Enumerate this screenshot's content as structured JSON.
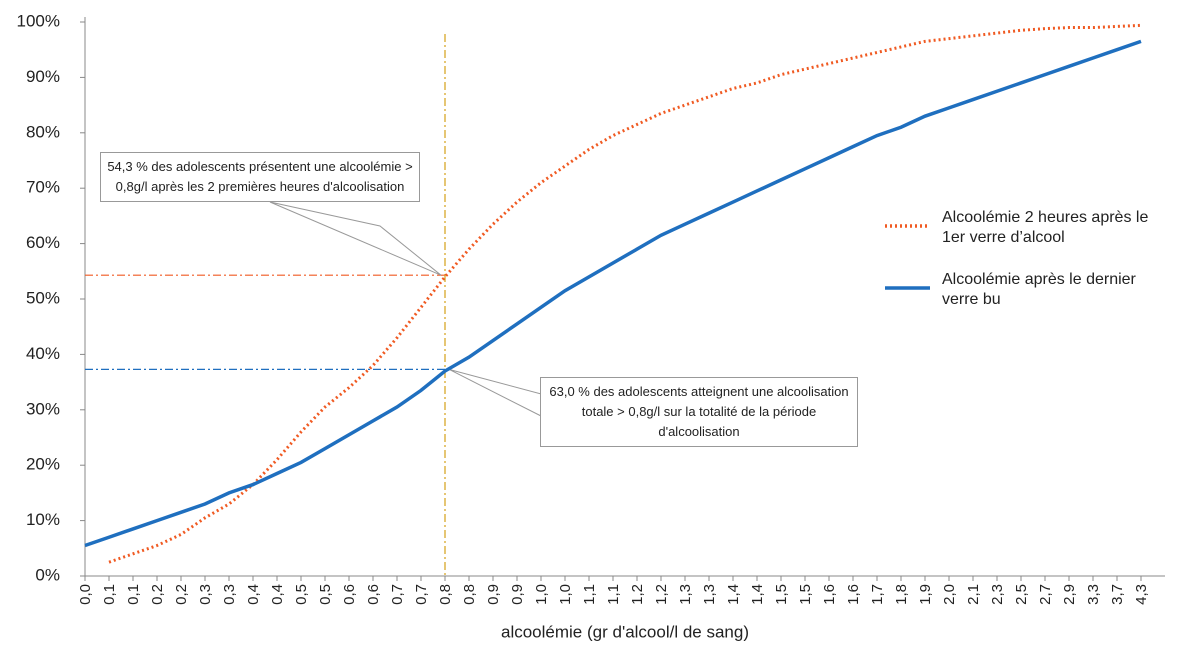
{
  "chart_data": {
    "type": "line",
    "x_label": "alcoolémie (gr d'alcool/l de sang)",
    "categories": [
      "0,0",
      "0,1",
      "0,1",
      "0,2",
      "0,2",
      "0,3",
      "0,3",
      "0,4",
      "0,4",
      "0,5",
      "0,5",
      "0,6",
      "0,6",
      "0,7",
      "0,7",
      "0,8",
      "0,8",
      "0,9",
      "0,9",
      "1,0",
      "1,0",
      "1,1",
      "1,1",
      "1,2",
      "1,2",
      "1,3",
      "1,3",
      "1,4",
      "1,4",
      "1,5",
      "1,5",
      "1,6",
      "1,6",
      "1,7",
      "1,8",
      "1,9",
      "2,0",
      "2,1",
      "2,3",
      "2,5",
      "2,7",
      "2,9",
      "3,3",
      "3,7",
      "4,3"
    ],
    "series": [
      {
        "name": "Alcoolémie 2 heures après le 1er verre d’alcool",
        "color": "#f05a22",
        "dash": "dotted",
        "values": [
          null,
          2.5,
          4,
          5.5,
          7.5,
          10.5,
          13,
          16.5,
          21,
          26,
          30.5,
          34,
          38,
          43,
          48.5,
          54,
          59,
          63.5,
          67.5,
          71,
          74,
          77,
          79.5,
          81.5,
          83.5,
          85,
          86.5,
          88,
          89,
          90.5,
          91.5,
          92.5,
          93.5,
          94.5,
          95.5,
          96.5,
          97,
          97.5,
          98,
          98.5,
          98.8,
          99,
          99,
          99.2,
          99.4
        ]
      },
      {
        "name": "Alcoolémie après le dernier verre bu",
        "color": "#1f6fbf",
        "dash": "solid",
        "values": [
          5.5,
          7,
          8.5,
          10,
          11.5,
          13,
          15,
          16.5,
          18.5,
          20.5,
          23,
          25.5,
          28,
          30.5,
          33.5,
          37,
          39.5,
          42.5,
          45.5,
          48.5,
          51.5,
          54,
          56.5,
          59,
          61.5,
          63.5,
          65.5,
          67.5,
          69.5,
          71.5,
          73.5,
          75.5,
          77.5,
          79.5,
          81,
          83,
          84.5,
          86,
          87.5,
          89,
          90.5,
          92,
          93.5,
          95,
          96.5
        ]
      }
    ],
    "ylim": [
      0,
      100
    ],
    "yticks": [
      {
        "value": 0,
        "label": "0%"
      },
      {
        "value": 10,
        "label": "10%"
      },
      {
        "value": 20,
        "label": "20%"
      },
      {
        "value": 30,
        "label": "30%"
      },
      {
        "value": 40,
        "label": "40%"
      },
      {
        "value": 50,
        "label": "50%"
      },
      {
        "value": 60,
        "label": "60%"
      },
      {
        "value": 70,
        "label": "70%"
      },
      {
        "value": 80,
        "label": "80%"
      },
      {
        "value": 90,
        "label": "90%"
      },
      {
        "value": 100,
        "label": "100%"
      }
    ],
    "reference_lines": [
      {
        "value": 54.3,
        "color": "#f05a22"
      },
      {
        "value": 37.3,
        "color": "#1f6fbf"
      }
    ],
    "vertical_line_index": 15,
    "vertical_line_color": "#d4a017",
    "annotations": [
      "54,3 % des adolescents présentent une alcoolémie > 0,8g/l après les 2 premières heures d'alcoolisation",
      "63,0 % des adolescents atteignent une alcoolisation totale > 0,8g/l sur la totalité de la période d'alcoolisation"
    ]
  }
}
